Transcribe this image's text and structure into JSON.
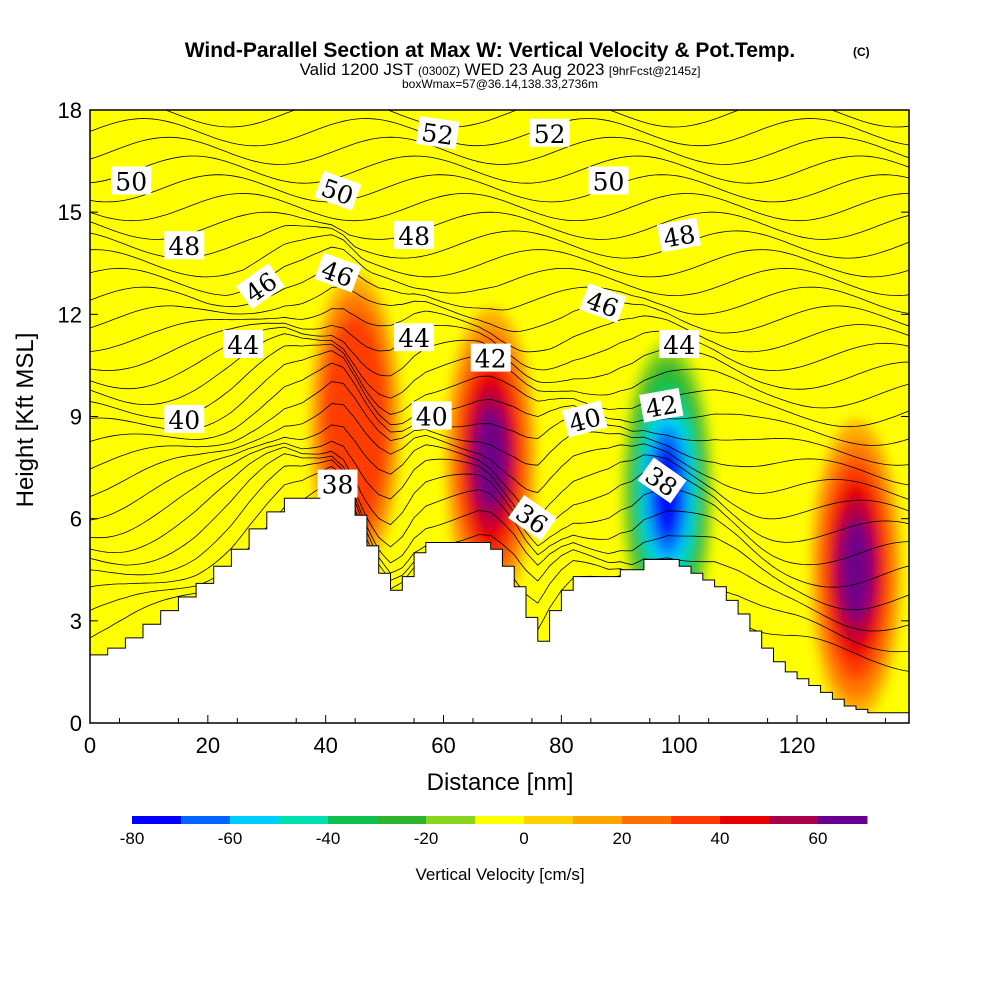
{
  "chart_data": {
    "type": "heatmap",
    "title": "Wind-Parallel Section at Max W: Vertical Velocity & Pot.Temp.",
    "title_mark": "(C)",
    "subtitle_valid": "Valid 1200 JST",
    "subtitle_utc": "(0300Z)",
    "subtitle_date": "WED 23 Aug 2023",
    "subtitle_fcst": "[9hrFcst@2145z]",
    "subtitle_box": "boxWmax=57@36.14,138.33,2736m",
    "xlabel": "Distance [nm]",
    "ylabel": "Height [Kft MSL]",
    "xlim": [
      0,
      139
    ],
    "ylim": [
      0,
      18
    ],
    "xticks": [
      0,
      20,
      40,
      60,
      80,
      100,
      120
    ],
    "yticks": [
      0,
      3,
      6,
      9,
      12,
      15,
      18
    ],
    "colorbar": {
      "label": "Vertical Velocity [cm/s]",
      "range": [
        -80,
        70
      ],
      "tick_values": [
        -80,
        -60,
        -40,
        -20,
        0,
        20,
        40,
        60
      ],
      "colors": [
        "#0000ff",
        "#0066ff",
        "#00ccff",
        "#00e0b0",
        "#11c050",
        "#2eb52e",
        "#88d61f",
        "#ffff00",
        "#ffd200",
        "#ffa500",
        "#ff7000",
        "#ff3800",
        "#e60000",
        "#a8004a",
        "#6a0090"
      ]
    },
    "terrain_profile": {
      "x": [
        0,
        3,
        6,
        9,
        12,
        15,
        18,
        21,
        24,
        27,
        30,
        33,
        36,
        39,
        41,
        43,
        45,
        47,
        49,
        51,
        53,
        55,
        57,
        60,
        63,
        66,
        68,
        70,
        72,
        74,
        76,
        78,
        80,
        82,
        84,
        86,
        88,
        90,
        92,
        94,
        96,
        98,
        100,
        102,
        104,
        106,
        108,
        110,
        112,
        114,
        116,
        118,
        120,
        122,
        124,
        126,
        128,
        130,
        132,
        134,
        136,
        139
      ],
      "height_kft": [
        2.0,
        2.2,
        2.5,
        2.9,
        3.3,
        3.7,
        4.1,
        4.6,
        5.1,
        5.7,
        6.2,
        6.6,
        6.6,
        6.8,
        7.0,
        6.8,
        6.1,
        5.2,
        4.4,
        3.9,
        4.3,
        5.0,
        5.3,
        5.3,
        5.3,
        5.3,
        5.1,
        4.6,
        4.0,
        3.1,
        2.4,
        3.3,
        3.9,
        4.3,
        4.3,
        4.3,
        4.3,
        4.5,
        4.5,
        4.8,
        4.8,
        4.8,
        4.6,
        4.4,
        4.2,
        4.0,
        3.6,
        3.2,
        2.7,
        2.2,
        1.8,
        1.5,
        1.3,
        1.1,
        0.9,
        0.7,
        0.5,
        0.4,
        0.3,
        0.3,
        0.3,
        0.3
      ]
    },
    "updraft_max": [
      {
        "x": 68,
        "y_kft": 7.5,
        "w": 70
      },
      {
        "x": 130,
        "y_kft": 4.2,
        "w": 65
      },
      {
        "x": 45,
        "y_kft": 8.5,
        "w": 30
      },
      {
        "x": 98,
        "y_kft": 6.5,
        "w": -80
      }
    ],
    "theta_contour_labels": [
      {
        "text": "50",
        "x": 7,
        "y": 15.9,
        "angle": 0
      },
      {
        "text": "48",
        "x": 16,
        "y": 14.0,
        "angle": 0
      },
      {
        "text": "46",
        "x": 29,
        "y": 12.8,
        "angle": -35
      },
      {
        "text": "44",
        "x": 26,
        "y": 11.1,
        "angle": 0
      },
      {
        "text": "40",
        "x": 16,
        "y": 8.9,
        "angle": 0
      },
      {
        "text": "38",
        "x": 42,
        "y": 7.0,
        "angle": 0
      },
      {
        "text": "50",
        "x": 42,
        "y": 15.6,
        "angle": 20
      },
      {
        "text": "46",
        "x": 42,
        "y": 13.2,
        "angle": 20
      },
      {
        "text": "52",
        "x": 59,
        "y": 17.3,
        "angle": 8
      },
      {
        "text": "48",
        "x": 55,
        "y": 14.3,
        "angle": 0
      },
      {
        "text": "44",
        "x": 55,
        "y": 11.3,
        "angle": 0
      },
      {
        "text": "40",
        "x": 58,
        "y": 9.0,
        "angle": 0
      },
      {
        "text": "42",
        "x": 68,
        "y": 10.7,
        "angle": 0
      },
      {
        "text": "52",
        "x": 78,
        "y": 17.3,
        "angle": 0
      },
      {
        "text": "50",
        "x": 88,
        "y": 15.9,
        "angle": 0
      },
      {
        "text": "46",
        "x": 87,
        "y": 12.3,
        "angle": 20
      },
      {
        "text": "40",
        "x": 84,
        "y": 8.9,
        "angle": -15
      },
      {
        "text": "36",
        "x": 75,
        "y": 6.0,
        "angle": 35
      },
      {
        "text": "48",
        "x": 100,
        "y": 14.3,
        "angle": -10
      },
      {
        "text": "44",
        "x": 100,
        "y": 11.1,
        "angle": 0
      },
      {
        "text": "42",
        "x": 97,
        "y": 9.3,
        "angle": -10
      },
      {
        "text": "38",
        "x": 97,
        "y": 7.1,
        "angle": 35
      }
    ]
  }
}
